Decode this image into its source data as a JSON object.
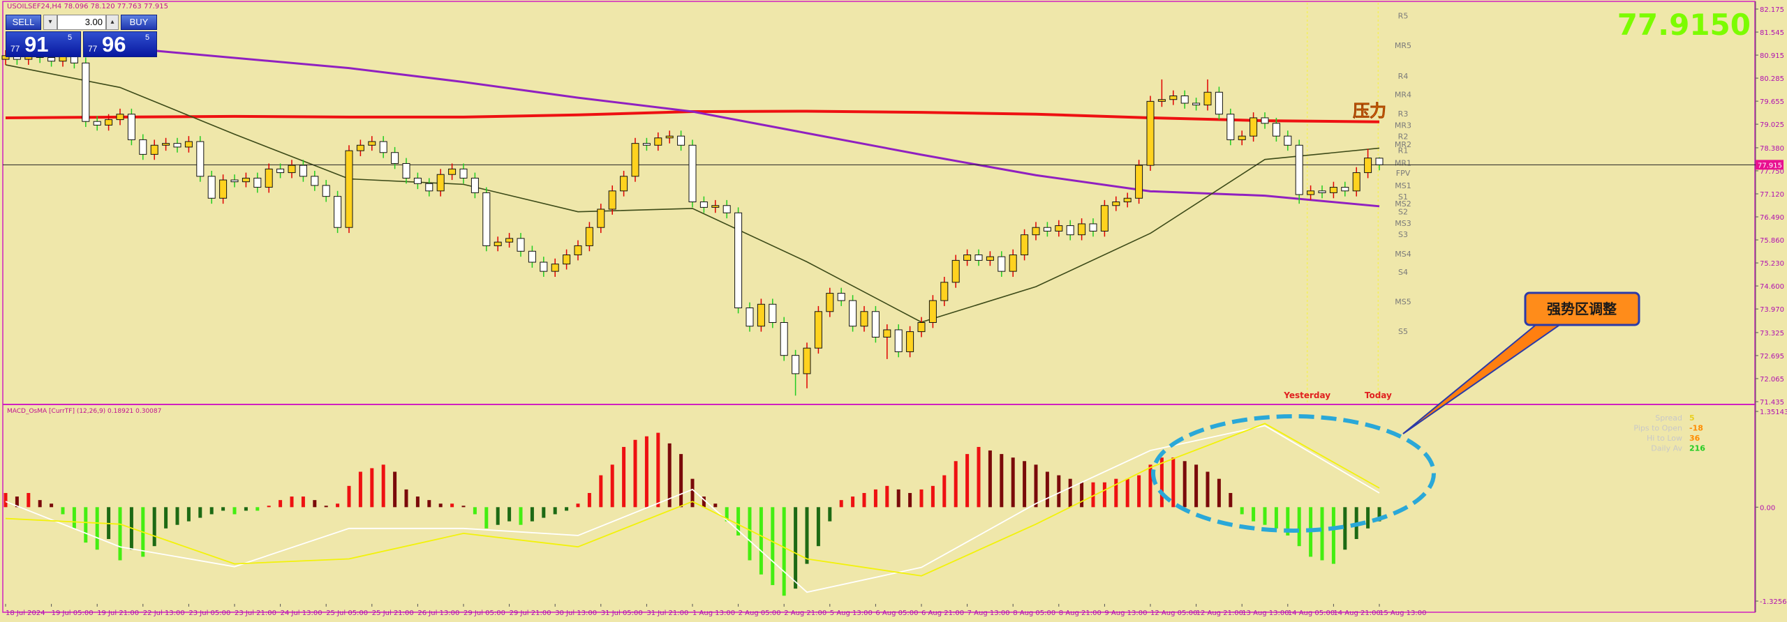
{
  "chart_data": [
    {
      "type": "candlestick",
      "title": "USOILSEF24,H4  78.096 78.120 77.763 77.915",
      "open": [
        80.8,
        80.9,
        80.8,
        80.95,
        80.85,
        80.75,
        80.95,
        80.7,
        79.1,
        79.0,
        79.15,
        79.3,
        78.6,
        78.2,
        78.45,
        78.5,
        78.4,
        78.55,
        77.6,
        77.0,
        77.5,
        77.45,
        77.55,
        77.3,
        77.8,
        77.7,
        77.9,
        77.6,
        77.35,
        77.05,
        76.2,
        78.3,
        78.45,
        78.55,
        78.25,
        77.95,
        77.55,
        77.4,
        77.2,
        77.65,
        77.8,
        77.55,
        77.15,
        75.7,
        75.8,
        75.9,
        75.55,
        75.25,
        75.0,
        75.2,
        75.45,
        75.7,
        76.2,
        76.7,
        77.2,
        77.6,
        78.5,
        78.45,
        78.65,
        78.7,
        78.45,
        76.9,
        76.75,
        76.8,
        76.6,
        74.0,
        73.5,
        74.1,
        73.6,
        72.7,
        72.2,
        72.9,
        73.9,
        74.4,
        74.2,
        73.5,
        73.9,
        73.2,
        73.4,
        72.8,
        73.35,
        73.6,
        74.2,
        74.7,
        75.3,
        75.45,
        75.3,
        75.4,
        75.0,
        75.45,
        76.0,
        76.2,
        76.1,
        76.25,
        76.0,
        76.3,
        76.1,
        76.8,
        76.9,
        77.0,
        77.9,
        79.65,
        79.7,
        79.8,
        79.6,
        79.55,
        79.9,
        79.3,
        78.6,
        78.7,
        79.2,
        79.05,
        78.7,
        78.45,
        77.1,
        77.2,
        77.15,
        77.3,
        77.2,
        77.7,
        78.096
      ],
      "high": [
        81.05,
        81.05,
        81.1,
        81.1,
        81.0,
        81.1,
        81.1,
        80.85,
        79.25,
        79.3,
        79.45,
        79.45,
        78.75,
        78.6,
        78.65,
        78.65,
        78.7,
        78.7,
        77.75,
        77.65,
        77.65,
        77.7,
        77.7,
        77.95,
        77.95,
        78.05,
        78.05,
        77.75,
        77.5,
        77.2,
        78.45,
        78.6,
        78.7,
        78.7,
        78.4,
        78.1,
        77.7,
        77.55,
        77.8,
        77.95,
        77.95,
        77.7,
        77.3,
        75.95,
        76.05,
        76.05,
        75.7,
        75.4,
        75.35,
        75.6,
        75.85,
        76.35,
        76.85,
        77.35,
        77.75,
        78.65,
        78.65,
        78.8,
        78.85,
        78.85,
        78.6,
        77.05,
        76.95,
        76.95,
        76.75,
        74.15,
        74.25,
        74.25,
        73.75,
        72.85,
        73.05,
        74.05,
        74.55,
        74.55,
        74.35,
        74.05,
        74.05,
        73.55,
        73.55,
        73.5,
        73.75,
        74.35,
        74.85,
        75.45,
        75.6,
        75.6,
        75.55,
        75.55,
        75.6,
        76.15,
        76.35,
        76.35,
        76.4,
        76.4,
        76.45,
        76.45,
        76.95,
        77.05,
        77.15,
        78.05,
        79.8,
        80.25,
        79.95,
        79.95,
        79.75,
        80.25,
        80.05,
        79.45,
        78.85,
        79.35,
        79.35,
        79.2,
        78.85,
        78.6,
        77.35,
        77.35,
        77.45,
        77.45,
        77.85,
        78.35,
        78.12
      ],
      "low": [
        80.65,
        80.65,
        80.65,
        80.7,
        80.6,
        80.6,
        80.55,
        78.95,
        78.85,
        78.85,
        79.0,
        78.45,
        78.05,
        78.05,
        78.3,
        78.25,
        78.25,
        77.45,
        76.85,
        76.85,
        77.3,
        77.3,
        77.15,
        77.15,
        77.55,
        77.55,
        77.45,
        77.2,
        76.9,
        76.05,
        76.05,
        78.15,
        78.3,
        78.1,
        77.8,
        77.4,
        77.25,
        77.05,
        77.05,
        77.5,
        77.4,
        77.0,
        75.55,
        75.55,
        75.65,
        75.4,
        75.1,
        74.85,
        74.85,
        75.05,
        75.3,
        75.55,
        76.05,
        76.55,
        77.05,
        77.45,
        78.3,
        78.3,
        78.5,
        78.3,
        76.75,
        76.6,
        76.6,
        76.45,
        73.85,
        73.35,
        73.35,
        73.45,
        72.55,
        71.6,
        71.8,
        72.75,
        73.75,
        74.05,
        73.35,
        73.35,
        73.05,
        72.6,
        72.65,
        72.65,
        73.2,
        73.45,
        74.05,
        74.55,
        75.15,
        75.15,
        75.15,
        74.85,
        74.85,
        75.3,
        75.85,
        75.95,
        75.95,
        75.85,
        75.85,
        75.95,
        75.95,
        76.65,
        76.75,
        76.85,
        77.75,
        79.5,
        79.55,
        79.45,
        79.4,
        79.4,
        79.15,
        78.45,
        78.45,
        78.55,
        78.9,
        78.55,
        78.3,
        76.85,
        76.95,
        77.0,
        77.0,
        77.05,
        77.05,
        77.55,
        77.763
      ],
      "close": [
        80.9,
        80.8,
        80.95,
        80.85,
        80.75,
        80.95,
        80.7,
        79.1,
        79.0,
        79.15,
        79.3,
        78.6,
        78.2,
        78.45,
        78.5,
        78.4,
        78.55,
        77.6,
        77.0,
        77.5,
        77.45,
        77.55,
        77.3,
        77.8,
        77.7,
        77.9,
        77.6,
        77.35,
        77.05,
        76.2,
        78.3,
        78.45,
        78.55,
        78.25,
        77.95,
        77.55,
        77.4,
        77.2,
        77.65,
        77.8,
        77.55,
        77.15,
        75.7,
        75.8,
        75.9,
        75.55,
        75.25,
        75.0,
        75.2,
        75.45,
        75.7,
        76.2,
        76.7,
        77.2,
        77.6,
        78.5,
        78.45,
        78.65,
        78.7,
        78.45,
        76.9,
        76.75,
        76.8,
        76.6,
        74.0,
        73.5,
        74.1,
        73.6,
        72.7,
        72.2,
        72.9,
        73.9,
        74.4,
        74.2,
        73.5,
        73.9,
        73.2,
        73.4,
        72.8,
        73.35,
        73.6,
        74.2,
        74.7,
        75.3,
        75.45,
        75.3,
        75.4,
        75.0,
        75.45,
        76.0,
        76.2,
        76.1,
        76.25,
        76.0,
        76.3,
        76.1,
        76.8,
        76.9,
        77.0,
        77.9,
        79.65,
        79.7,
        79.8,
        79.6,
        79.55,
        79.9,
        79.3,
        78.6,
        78.7,
        79.2,
        79.05,
        78.7,
        78.45,
        77.1,
        77.2,
        77.15,
        77.3,
        77.2,
        77.7,
        78.1,
        77.915
      ],
      "up_color": "#ffd21f",
      "down_color": "#ffffff",
      "up_wick": "#e00000",
      "down_wick": "#22cc22",
      "lines": [
        {
          "color": "#ee1111",
          "width": 4,
          "x": [
            0,
            10,
            20,
            30,
            40,
            50,
            60,
            70,
            80,
            90,
            100,
            110,
            120
          ],
          "values": [
            79.2,
            79.22,
            79.24,
            79.22,
            79.22,
            79.28,
            79.37,
            79.38,
            79.35,
            79.3,
            79.2,
            79.12,
            79.09
          ]
        },
        {
          "color": "#9020c0",
          "width": 3,
          "x": [
            10,
            20,
            30,
            40,
            50,
            60,
            70,
            80,
            90,
            100,
            110,
            120
          ],
          "values": [
            81.12,
            80.84,
            80.56,
            80.18,
            79.75,
            79.37,
            78.78,
            78.19,
            77.63,
            77.19,
            77.07,
            76.78
          ]
        },
        {
          "color": "#3c4a18",
          "width": 1.6,
          "x": [
            0,
            10,
            20,
            30,
            40,
            50,
            60,
            70,
            80,
            90,
            100,
            110,
            120
          ],
          "values": [
            80.65,
            80.03,
            78.75,
            77.53,
            77.38,
            76.63,
            76.72,
            75.26,
            73.61,
            74.58,
            76.04,
            78.06,
            78.37
          ]
        }
      ],
      "ylim": [
        71.435,
        82.175
      ],
      "yticks": [
        82.175,
        81.545,
        80.915,
        80.285,
        79.655,
        79.025,
        {
          "value": 78.38,
          "label": "78.380"
        },
        {
          "value": 77.75,
          "label": "77.750"
        },
        {
          "value": 77.12,
          "label": "77.120"
        },
        {
          "value": 76.49,
          "label": "76.490"
        },
        {
          "value": 75.86,
          "label": "75.860"
        },
        {
          "value": 75.23,
          "label": "75.230"
        },
        {
          "value": 74.6,
          "label": "74.600"
        },
        {
          "value": 73.97,
          "label": "73.970"
        },
        73.325,
        72.695,
        72.065,
        71.435
      ],
      "xticks": [
        {
          "value": 0,
          "label": "18 Jul 2024"
        },
        {
          "value": 4,
          "label": "19 Jul 05:00"
        },
        {
          "value": 8,
          "label": "19 Jul 21:00"
        },
        {
          "value": 12,
          "label": "22 Jul 13:00"
        },
        {
          "value": 16,
          "label": "23 Jul 05:00"
        },
        {
          "value": 20,
          "label": "23 Jul 21:00"
        },
        {
          "value": 24,
          "label": "24 Jul 13:00"
        },
        {
          "value": 28,
          "label": "25 Jul 05:00"
        },
        {
          "value": 32,
          "label": "25 Jul 21:00"
        },
        {
          "value": 36,
          "label": "26 Jul 13:00"
        },
        {
          "value": 40,
          "label": "29 Jul 05:00"
        },
        {
          "value": 44,
          "label": "29 Jul 21:00"
        },
        {
          "value": 48,
          "label": "30 Jul 13:00"
        },
        {
          "value": 52,
          "label": "31 Jul 05:00"
        },
        {
          "value": 56,
          "label": "31 Jul 21:00"
        },
        {
          "value": 60,
          "label": "1 Aug 13:00"
        },
        {
          "value": 64,
          "label": "2 Aug 05:00"
        },
        {
          "value": 68,
          "label": "2 Aug 21:00"
        },
        {
          "value": 72,
          "label": "5 Aug 13:00"
        },
        {
          "value": 76,
          "label": "6 Aug 05:00"
        },
        {
          "value": 80,
          "label": "6 Aug 21:00"
        },
        {
          "value": 84,
          "label": "7 Aug 13:00"
        },
        {
          "value": 88,
          "label": "8 Aug 05:00"
        },
        {
          "value": 92,
          "label": "8 Aug 21:00"
        },
        {
          "value": 96,
          "label": "9 Aug 13:00"
        },
        {
          "value": 100,
          "label": "12 Aug 05:00"
        },
        {
          "value": 104,
          "label": "12 Aug 21:00"
        },
        {
          "value": 108,
          "label": "13 Aug 13:00"
        },
        {
          "value": 112,
          "label": "14 Aug 05:00"
        },
        {
          "value": 116,
          "label": "14 Aug 21:00"
        },
        {
          "value": 120,
          "label": "15 Aug 13:00"
        }
      ],
      "xlim": [
        0,
        120
      ],
      "levels": [
        {
          "label": "R5",
          "value": 81.99
        },
        {
          "label": "MR5",
          "value": 81.18
        },
        {
          "label": "R4",
          "value": 80.34
        },
        {
          "label": "MR4",
          "value": 79.84
        },
        {
          "label": "R3",
          "value": 79.31
        },
        {
          "label": "MR3",
          "value": 79.0
        },
        {
          "label": "R2",
          "value": 78.69
        },
        {
          "label": "MR2",
          "value": 78.47
        },
        {
          "label": "R1",
          "value": 78.31
        },
        {
          "label": "MR1",
          "value": 77.97
        },
        {
          "label": "FPV",
          "value": 77.69
        },
        {
          "label": "MS1",
          "value": 77.35
        },
        {
          "label": "S1",
          "value": 77.04
        },
        {
          "label": "MS2",
          "value": 76.85
        },
        {
          "label": "S2",
          "value": 76.63
        },
        {
          "label": "MS3",
          "value": 76.32
        },
        {
          "label": "S3",
          "value": 76.01
        },
        {
          "label": "MS4",
          "value": 75.48
        },
        {
          "label": "S4",
          "value": 74.98
        },
        {
          "label": "MS5",
          "value": 74.17
        },
        {
          "label": "S5",
          "value": 73.36
        }
      ],
      "day_lines": [
        {
          "label": "Yesterday",
          "x": 113.7
        },
        {
          "label": "Today",
          "x": 119.9
        }
      ],
      "current_price": 77.915,
      "big_price": {
        "value": 77.915,
        "label": "77.9150"
      },
      "annotations": [
        "压力",
        "强势区调整"
      ]
    },
    {
      "type": "macd",
      "title": "MACD_OsMA [CurrTF] (12,26,9) 0.18921 0.30087",
      "values": [
        0.2,
        0.15,
        0.2,
        0.1,
        0.05,
        -0.1,
        -0.3,
        -0.5,
        -0.6,
        -0.45,
        -0.75,
        -0.6,
        -0.7,
        -0.55,
        -0.3,
        -0.25,
        -0.2,
        -0.15,
        -0.1,
        -0.05,
        -0.1,
        -0.05,
        -0.05,
        0.02,
        0.1,
        0.15,
        0.15,
        0.1,
        0.02,
        0.05,
        0.3,
        0.5,
        0.55,
        0.6,
        0.5,
        0.25,
        0.15,
        0.1,
        0.05,
        0.05,
        0.02,
        -0.1,
        -0.3,
        -0.25,
        -0.2,
        -0.25,
        -0.2,
        -0.15,
        -0.1,
        -0.05,
        0.05,
        0.2,
        0.45,
        0.6,
        0.85,
        0.95,
        1.0,
        1.05,
        0.9,
        0.75,
        0.4,
        0.15,
        0.05,
        -0.2,
        -0.4,
        -0.75,
        -0.95,
        -1.1,
        -1.25,
        -1.15,
        -0.8,
        -0.55,
        -0.2,
        0.1,
        0.15,
        0.2,
        0.25,
        0.3,
        0.25,
        0.2,
        0.25,
        0.3,
        0.45,
        0.65,
        0.75,
        0.85,
        0.8,
        0.75,
        0.7,
        0.65,
        0.6,
        0.5,
        0.45,
        0.4,
        0.35,
        0.35,
        0.35,
        0.4,
        0.4,
        0.45,
        0.6,
        0.7,
        0.7,
        0.65,
        0.6,
        0.5,
        0.4,
        0.2,
        -0.1,
        -0.2,
        -0.25,
        -0.3,
        -0.4,
        -0.55,
        -0.7,
        -0.75,
        -0.8,
        -0.6,
        -0.45,
        -0.3,
        -0.2
      ],
      "colors": {
        "pos_rising": "#ee1111",
        "pos_falling": "#7a0a0a",
        "neg_falling": "#44ee11",
        "neg_rising": "#1d6a14"
      },
      "lines": [
        {
          "color": "#ffffff",
          "x": [
            0,
            10,
            20,
            30,
            40,
            50,
            60,
            70,
            80,
            90,
            100,
            110,
            120
          ],
          "values": [
            0.08,
            -0.56,
            -0.84,
            -0.3,
            -0.3,
            -0.4,
            0.25,
            -1.2,
            -0.85,
            0.05,
            0.8,
            1.15,
            0.2
          ]
        },
        {
          "color": "#f2f20a",
          "x": [
            0,
            10,
            20,
            30,
            40,
            50,
            60,
            70,
            80,
            90,
            100,
            110,
            120
          ],
          "values": [
            -0.16,
            -0.24,
            -0.8,
            -0.73,
            -0.37,
            -0.56,
            0.08,
            -0.73,
            -0.97,
            -0.24,
            0.56,
            1.18,
            0.27
          ]
        }
      ],
      "ylim": [
        -1.32567,
        1.35143
      ],
      "yticks": [
        1.35143,
        {
          "value": 0,
          "label": "0.00"
        },
        -1.32567
      ],
      "info": [
        {
          "label": "Spread",
          "value": "5",
          "color": "#e8d020"
        },
        {
          "label": "Pips to Open",
          "value": "-18",
          "color": "#ff8c00"
        },
        {
          "label": "Hi to Low",
          "value": "36",
          "color": "#ff8c00"
        },
        {
          "label": "Daily Av",
          "value": "216",
          "color": "#22cc22"
        }
      ]
    }
  ],
  "order_panel": {
    "sell": "SELL",
    "lots": "3.00",
    "buy": "BUY",
    "sell_price": [
      "77",
      "91",
      "5"
    ],
    "buy_price": [
      "77",
      "96",
      "5"
    ]
  }
}
